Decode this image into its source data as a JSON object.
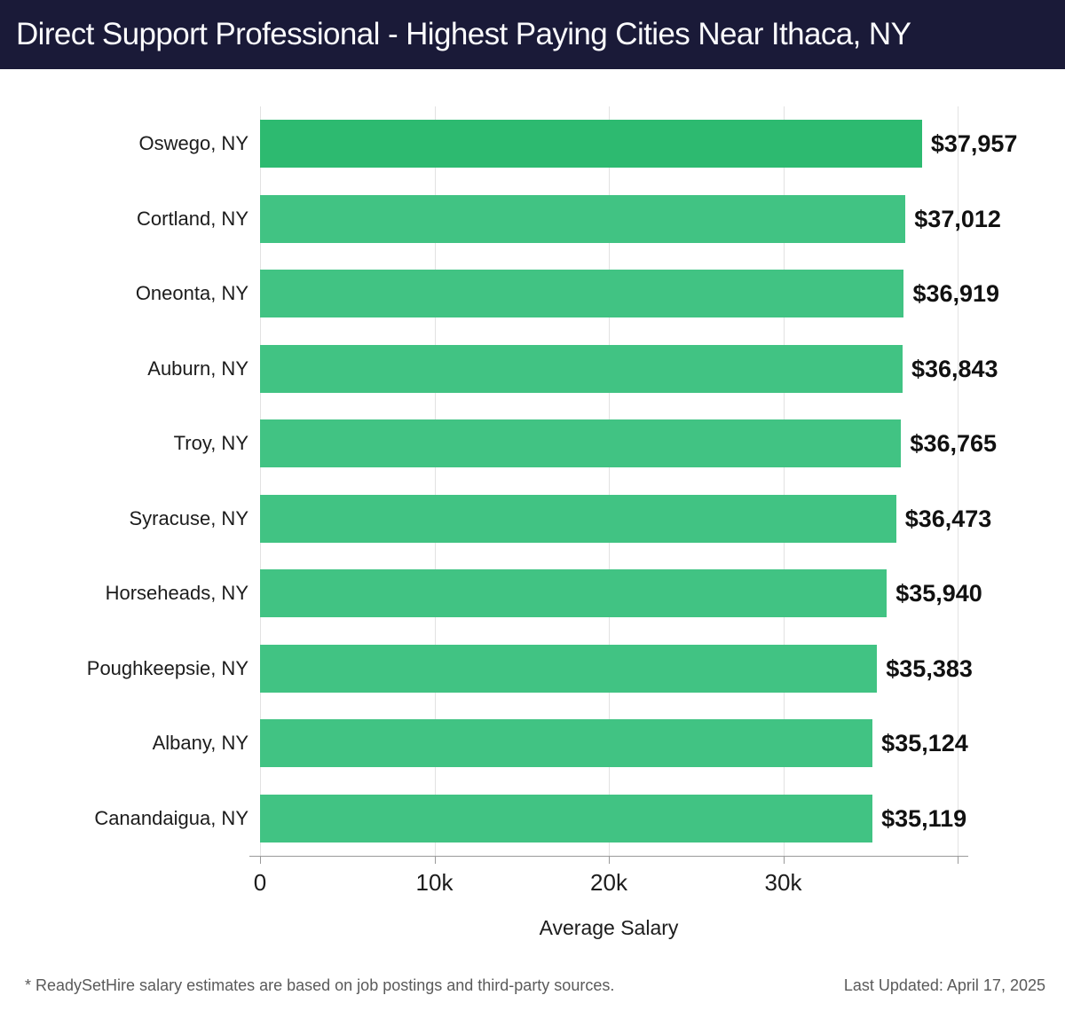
{
  "header": {
    "title": "Direct Support Professional - Highest Paying Cities Near Ithaca, NY"
  },
  "chart_data": {
    "type": "bar",
    "orientation": "horizontal",
    "title": "Direct Support Professional - Highest Paying Cities Near Ithaca, NY",
    "categories": [
      "Oswego, NY",
      "Cortland, NY",
      "Oneonta, NY",
      "Auburn, NY",
      "Troy, NY",
      "Syracuse, NY",
      "Horseheads, NY",
      "Poughkeepsie, NY",
      "Albany, NY",
      "Canandaigua, NY"
    ],
    "values": [
      37957,
      37012,
      36919,
      36843,
      36765,
      36473,
      35940,
      35383,
      35124,
      35119
    ],
    "value_labels": [
      "$37,957",
      "$37,012",
      "$36,919",
      "$36,843",
      "$36,765",
      "$36,473",
      "$35,940",
      "$35,383",
      "$35,124",
      "$35,119"
    ],
    "xlabel": "Average Salary",
    "ylabel": "",
    "xlim": [
      0,
      40000
    ],
    "x_ticks": [
      0,
      10000,
      20000,
      30000,
      40000
    ],
    "x_tick_labels": [
      "0",
      "10k",
      "20k",
      "30k",
      ""
    ],
    "grid": true,
    "legend": false
  },
  "colors": {
    "header_bg": "#1a1a38",
    "header_text": "#fbfbfd",
    "bar_highlight": "#2dba70",
    "bar_default": "#41c383",
    "gridline": "#e2e2e2",
    "axis_line": "#9a9a9a",
    "text_dark": "#1c1c1c",
    "footnote_gray": "#5a5a5a"
  },
  "footer": {
    "note": "* ReadySetHire salary estimates are based on job postings and third-party sources.",
    "updated": "Last Updated: April 17, 2025"
  }
}
